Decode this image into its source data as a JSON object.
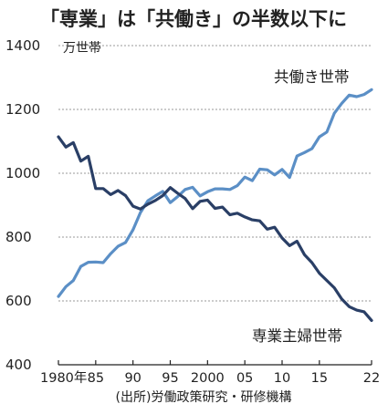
{
  "chart_data": {
    "type": "line",
    "title": "「専業」は「共働き」の半数以下に",
    "ylabel": "万世帯",
    "ylim": [
      400,
      1400
    ],
    "xlim": [
      1980,
      2022
    ],
    "grid": true,
    "y_ticks": [
      {
        "value": 400,
        "label": "400"
      },
      {
        "value": 600,
        "label": "600"
      },
      {
        "value": 800,
        "label": "800"
      },
      {
        "value": 1000,
        "label": "1000"
      },
      {
        "value": 1200,
        "label": "1200"
      },
      {
        "value": 1400,
        "label": "1400"
      }
    ],
    "x_ticks": [
      {
        "value": 1980,
        "label": "1980年"
      },
      {
        "value": 1985,
        "label": "85"
      },
      {
        "value": 1990,
        "label": "90"
      },
      {
        "value": 1995,
        "label": "95"
      },
      {
        "value": 2000,
        "label": "2000"
      },
      {
        "value": 2005,
        "label": "05"
      },
      {
        "value": 2010,
        "label": "10"
      },
      {
        "value": 2015,
        "label": "15"
      },
      {
        "value": 2022,
        "label": "22"
      }
    ],
    "x": [
      1980,
      1981,
      1982,
      1983,
      1984,
      1985,
      1986,
      1987,
      1988,
      1989,
      1990,
      1991,
      1992,
      1993,
      1994,
      1995,
      1996,
      1997,
      1998,
      1999,
      2000,
      2001,
      2002,
      2003,
      2004,
      2005,
      2006,
      2007,
      2008,
      2009,
      2010,
      2011,
      2012,
      2013,
      2014,
      2015,
      2016,
      2017,
      2018,
      2019,
      2020,
      2021,
      2022
    ],
    "series": [
      {
        "name": "共働き世帯",
        "color": "#5b8fc6",
        "values": [
          614,
          645,
          664,
          708,
          721,
          722,
          720,
          748,
          771,
          783,
          823,
          877,
          914,
          929,
          943,
          908,
          927,
          949,
          956,
          929,
          942,
          951,
          951,
          949,
          961,
          988,
          977,
          1013,
          1011,
          995,
          1012,
          987,
          1054,
          1065,
          1077,
          1114,
          1129,
          1188,
          1219,
          1245,
          1240,
          1247,
          1262
        ]
      },
      {
        "name": "専業主婦世帯",
        "color": "#2a3f66",
        "values": [
          1114,
          1082,
          1096,
          1038,
          1053,
          952,
          952,
          933,
          946,
          930,
          897,
          888,
          903,
          915,
          930,
          955,
          937,
          921,
          889,
          912,
          916,
          890,
          894,
          870,
          875,
          863,
          854,
          851,
          825,
          831,
          797,
          773,
          787,
          745,
          720,
          687,
          664,
          641,
          606,
          582,
          571,
          566,
          539
        ]
      }
    ]
  },
  "labels": {
    "working_couples": "共働き世帯",
    "housewife": "専業主婦世帯",
    "source": "(出所)労働政策研究・研修機構"
  }
}
